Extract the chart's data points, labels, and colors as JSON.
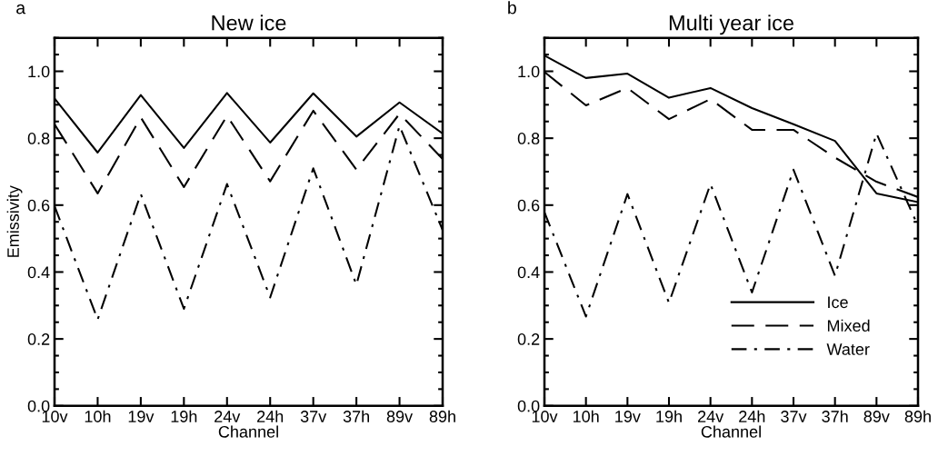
{
  "chart_data": [
    {
      "type": "line",
      "title": "New ice",
      "xlabel": "Channel",
      "ylabel": "Emissivity",
      "annotations": [
        "a"
      ],
      "categories": [
        "10v",
        "10h",
        "19v",
        "19h",
        "24v",
        "24h",
        "37v",
        "37h",
        "89v",
        "89h"
      ],
      "ylim": [
        0,
        1.1
      ],
      "yticks": [
        {
          "value": 0,
          "label": "0.0"
        },
        {
          "value": 0.2,
          "label": "0.2"
        },
        {
          "value": 0.4,
          "label": "0.4"
        },
        {
          "value": 0.6,
          "label": "0.6"
        },
        {
          "value": 0.8,
          "label": "0.8"
        },
        {
          "value": 1,
          "label": "1.0"
        }
      ],
      "grid": false,
      "legend": false,
      "marker": "none",
      "series": [
        {
          "color": "#000000",
          "line_style": "solid",
          "values": [
            0.919,
            0.757,
            0.929,
            0.771,
            0.935,
            0.787,
            0.934,
            0.805,
            0.907,
            0.814
          ]
        },
        {
          "color": "#000000",
          "line_style": "dashed",
          "values": [
            0.842,
            0.635,
            0.862,
            0.654,
            0.867,
            0.671,
            0.882,
            0.706,
            0.873,
            0.738
          ]
        },
        {
          "color": "#000000",
          "line_style": "dashdot",
          "values": [
            0.597,
            0.258,
            0.633,
            0.29,
            0.663,
            0.324,
            0.71,
            0.362,
            0.837,
            0.525
          ]
        }
      ]
    },
    {
      "type": "line",
      "title": "Multi year ice",
      "xlabel": "Channel",
      "annotations": [
        "b"
      ],
      "categories": [
        "10v",
        "10h",
        "19v",
        "19h",
        "24v",
        "24h",
        "37v",
        "37h",
        "89v",
        "89h"
      ],
      "ylim": [
        0,
        1.1
      ],
      "yticks": [
        {
          "value": 0,
          "label": "0.0"
        },
        {
          "value": 0.2,
          "label": "0.2"
        },
        {
          "value": 0.4,
          "label": "0.4"
        },
        {
          "value": 0.6,
          "label": "0.6"
        },
        {
          "value": 0.8,
          "label": "0.8"
        },
        {
          "value": 1,
          "label": "1.0"
        }
      ],
      "grid": false,
      "legend": "bottom right",
      "marker": "none",
      "series": [
        {
          "name": "Ice",
          "color": "#000000",
          "line_style": "solid",
          "values": [
            1.047,
            0.98,
            0.993,
            0.921,
            0.95,
            0.89,
            0.842,
            0.792,
            0.635,
            0.609
          ]
        },
        {
          "name": "Mixed",
          "color": "#000000",
          "line_style": "dashed",
          "values": [
            0.998,
            0.898,
            0.95,
            0.857,
            0.917,
            0.825,
            0.825,
            0.742,
            0.67,
            0.624
          ]
        },
        {
          "name": "Water",
          "color": "#000000",
          "line_style": "dashdot",
          "values": [
            0.579,
            0.267,
            0.633,
            0.308,
            0.663,
            0.339,
            0.706,
            0.389,
            0.814,
            0.538
          ]
        }
      ]
    }
  ]
}
